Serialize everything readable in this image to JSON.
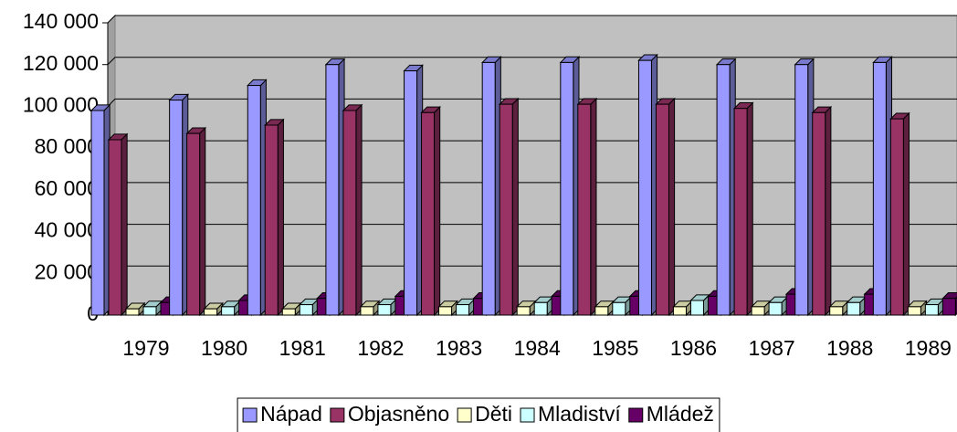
{
  "chart_data": {
    "type": "bar3d",
    "categories": [
      "1979",
      "1980",
      "1981",
      "1982",
      "1983",
      "1984",
      "1985",
      "1986",
      "1987",
      "1988",
      "1989"
    ],
    "series": [
      {
        "name": "Nápad",
        "color": "#9999ff",
        "values": [
          98000,
          103000,
          110000,
          120000,
          117000,
          121000,
          121000,
          122000,
          120000,
          120000,
          121000
        ]
      },
      {
        "name": "Objasněno",
        "color": "#993366",
        "values": [
          84000,
          87000,
          91000,
          98000,
          97000,
          101000,
          101000,
          101000,
          99000,
          97000,
          94000
        ]
      },
      {
        "name": "Děti",
        "color": "#ffffcc",
        "values": [
          3000,
          3000,
          3000,
          4000,
          4000,
          4000,
          4000,
          4000,
          4000,
          4000,
          4000
        ]
      },
      {
        "name": "Mladiství",
        "color": "#ccffff",
        "values": [
          4000,
          4000,
          5000,
          5000,
          5000,
          6000,
          6000,
          7000,
          6000,
          6000,
          5000
        ]
      },
      {
        "name": "Mládež",
        "color": "#660066",
        "values": [
          6000,
          7000,
          8000,
          9000,
          8000,
          9000,
          9000,
          9000,
          10000,
          10000,
          8000
        ]
      }
    ],
    "ylim": [
      0,
      140000
    ],
    "yticks": [
      0,
      {
        "value": 20000,
        "label": "20 000"
      },
      {
        "value": 40000,
        "label": "40 000"
      },
      {
        "value": 60000,
        "label": "60 000"
      },
      {
        "value": 80000,
        "label": "80 000"
      },
      {
        "value": 100000,
        "label": "100 000"
      },
      {
        "value": 120000,
        "label": "120 000"
      },
      {
        "value": 140000,
        "label": "140 000"
      }
    ],
    "grid": true,
    "legend": "bottom"
  }
}
